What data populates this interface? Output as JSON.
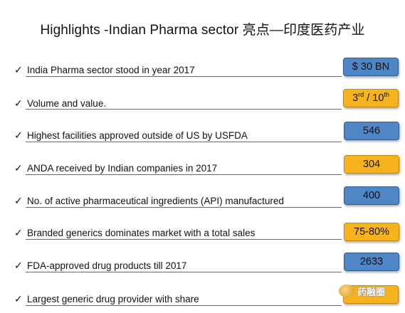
{
  "title": "Highlights -Indian Pharma sector 亮点—印度医药产业",
  "items": [
    {
      "label": "India Pharma sector stood in year 2017",
      "value": "$ 30 BN",
      "color": "blue"
    },
    {
      "label": "Volume and value.",
      "value_parts": [
        "3",
        "rd",
        " /  10",
        "th"
      ],
      "color": "orange"
    },
    {
      "label": "Highest facilities approved outside of US by USFDA",
      "value": "546",
      "color": "blue"
    },
    {
      "label": "ANDA received by Indian companies in 2017",
      "value": "304",
      "color": "orange"
    },
    {
      "label": " No. of active pharmaceutical ingredients (API) manufactured",
      "value": "400",
      "color": "blue"
    },
    {
      "label": "Branded generics dominates  market with a total sales",
      "value": "75-80%",
      "color": "orange"
    },
    {
      "label": "FDA-approved drug products till 2017",
      "value": "2633",
      "color": "blue"
    },
    {
      "label": "Largest generic drug provider with share",
      "value": "",
      "color": "orange"
    }
  ],
  "watermark": {
    "text": "药融圈"
  },
  "colors": {
    "blue": "#4f86c6",
    "orange": "#f7b31e"
  }
}
